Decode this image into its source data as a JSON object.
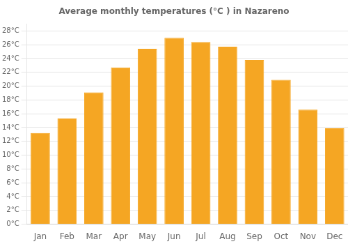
{
  "chart_data": {
    "type": "bar",
    "title": "Average monthly temperatures (°C ) in Nazareno",
    "categories": [
      "Jan",
      "Feb",
      "Mar",
      "Apr",
      "May",
      "Jun",
      "Jul",
      "Aug",
      "Sep",
      "Oct",
      "Nov",
      "Dec"
    ],
    "values": [
      13.2,
      15.3,
      19.1,
      22.7,
      25.4,
      27.0,
      26.4,
      25.7,
      23.8,
      20.9,
      16.6,
      13.9
    ],
    "color": "#F5A623",
    "ylim": [
      0,
      29
    ],
    "yticks": [
      {
        "value": 0,
        "label": "0°C"
      },
      {
        "value": 2,
        "label": "2°C"
      },
      {
        "value": 4,
        "label": "4°C"
      },
      {
        "value": 6,
        "label": "6°C"
      },
      {
        "value": 8,
        "label": "8°C"
      },
      {
        "value": 10,
        "label": "10°C"
      },
      {
        "value": 12,
        "label": "12°C"
      },
      {
        "value": 14,
        "label": "14°C"
      },
      {
        "value": 16,
        "label": "16°C"
      },
      {
        "value": 18,
        "label": "18°C"
      },
      {
        "value": 20,
        "label": "20°C"
      },
      {
        "value": 22,
        "label": "22°C"
      },
      {
        "value": 24,
        "label": "24°C"
      },
      {
        "value": 26,
        "label": "26°C"
      },
      {
        "value": 28,
        "label": "28°C"
      }
    ],
    "grid": true
  }
}
